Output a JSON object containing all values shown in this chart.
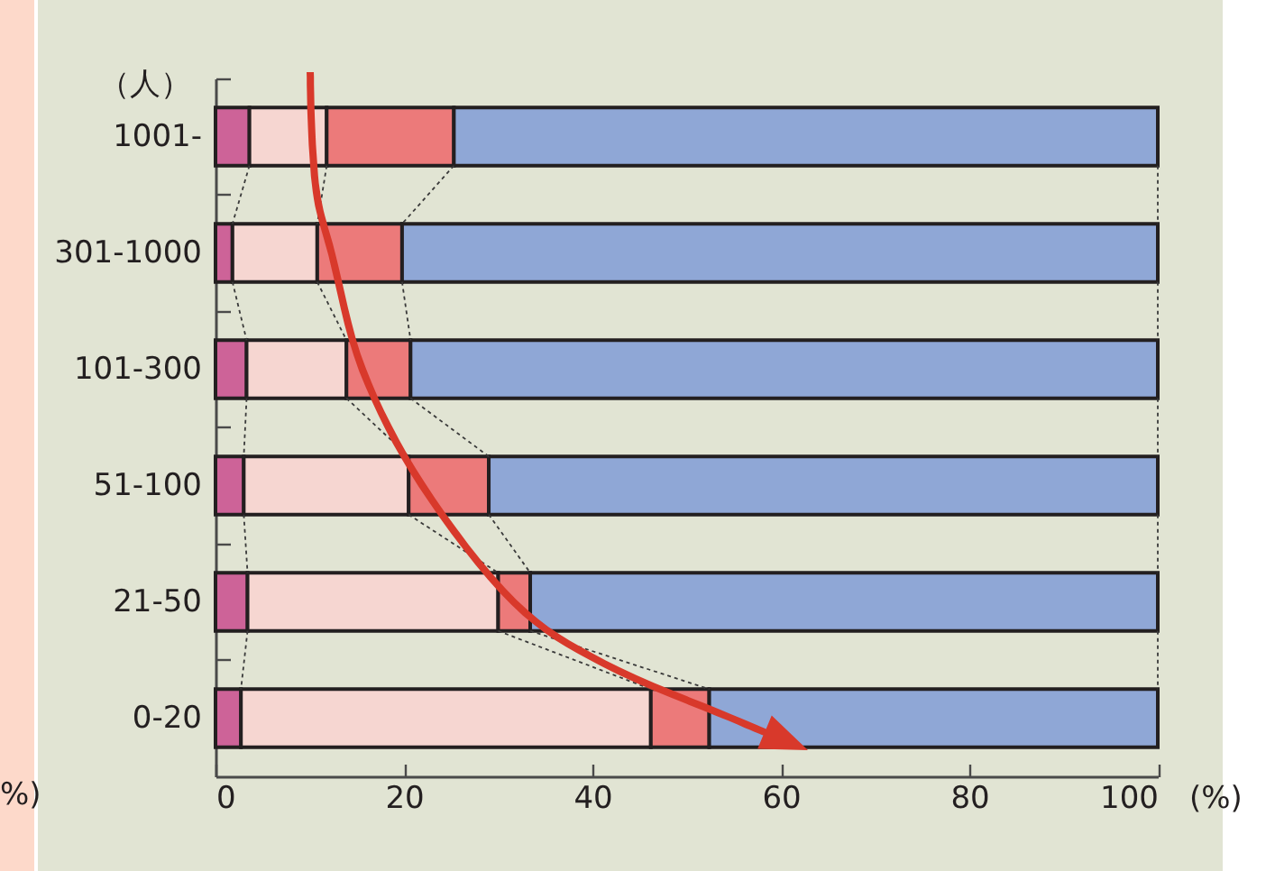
{
  "chart_data": {
    "type": "bar",
    "orientation": "horizontal",
    "stacked": true,
    "ylabel": "（人）",
    "xlabel": "(%)",
    "categories": [
      "1001-",
      "301-1000",
      "101-300",
      "51-100",
      "21-50",
      "0-20"
    ],
    "series": [
      {
        "color": "#cd6398",
        "values": [
          3.6,
          1.8,
          3.3,
          3.0,
          3.4,
          2.7
        ]
      },
      {
        "color": "#f6d6d1",
        "values": [
          8.2,
          9.0,
          10.6,
          17.5,
          26.6,
          43.5
        ]
      },
      {
        "color": "#ec7a7a",
        "values": [
          13.5,
          9.0,
          6.8,
          8.5,
          3.4,
          6.2
        ]
      },
      {
        "color": "#8fa7d6",
        "values": [
          74.7,
          80.2,
          79.3,
          71.0,
          66.6,
          47.6
        ]
      }
    ],
    "xlim": [
      0,
      100
    ],
    "xticks": [
      0,
      20,
      40,
      60,
      80,
      100
    ],
    "annotations": [
      "%)"
    ]
  }
}
